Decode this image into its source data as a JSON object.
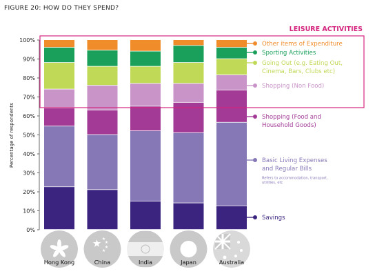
{
  "figure_title": "FIGURE 20: HOW DO THEY SPEND?",
  "leisure": {
    "label": "LEISURE ACTIVITIES",
    "color": "#d4247e"
  },
  "chart_data": {
    "type": "bar",
    "stacked": true,
    "ylabel": "Percentage of respondents",
    "ylim": [
      0,
      100
    ],
    "yticks": [
      "0%",
      "10%",
      "20%",
      "30%",
      "40%",
      "50%",
      "60%",
      "70%",
      "80%",
      "90%",
      "100%"
    ],
    "categories": [
      "Hong Kong",
      "China",
      "India",
      "Japan",
      "Australia"
    ],
    "series": [
      {
        "name": "Savings",
        "color": "#3b2480",
        "values": [
          22.5,
          21,
          15,
          14,
          12.5
        ]
      },
      {
        "name": "Basic Living Expenses and Regular Bills",
        "color": "#8677b6",
        "values": [
          32,
          29,
          37,
          37,
          44
        ],
        "note": "Refers to accommodation, transport, utilities, etc"
      },
      {
        "name": "Shopping (Food and Household Goods)",
        "color": "#a23a96",
        "values": [
          9.5,
          13,
          13,
          16,
          17
        ]
      },
      {
        "name": "Shopping (Non Food)",
        "color": "#c995c9",
        "values": [
          10,
          13,
          12,
          10,
          8
        ]
      },
      {
        "name": "Going Out (e.g. Eating Out, Cinema, Bars, Clubs etc)",
        "color": "#c0d957",
        "values": [
          14,
          10,
          9,
          11,
          8.5
        ]
      },
      {
        "name": "Sporting Activities",
        "color": "#1aa05a",
        "values": [
          8,
          8.5,
          8,
          9,
          6
        ]
      },
      {
        "name": "Other items of Expenditure",
        "color": "#f08c2a",
        "values": [
          4,
          5.5,
          6,
          3,
          4
        ]
      }
    ],
    "legend_lines": [
      [
        "Other items of Expenditure"
      ],
      [
        "Sporting Activities"
      ],
      [
        "Going Out (e.g. Eating Out,",
        "Cinema, Bars, Clubs etc)"
      ],
      [
        "Shopping (Non Food)"
      ],
      [
        "Shopping (Food and",
        "Household Goods)"
      ],
      [
        "Basic Living Expenses",
        "and Regular Bills"
      ],
      [
        "Savings"
      ]
    ],
    "legend_note_lines": [
      "Refers to accommodation, transport,",
      "utilities, etc"
    ],
    "legend_placement": "right",
    "grid": false,
    "category_icons": [
      "hong-kong-flag-icon",
      "china-flag-icon",
      "india-flag-icon",
      "japan-flag-icon",
      "australia-flag-icon"
    ]
  }
}
